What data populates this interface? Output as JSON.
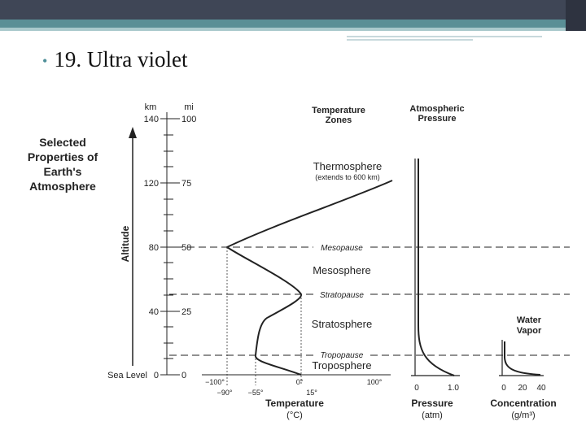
{
  "slide": {
    "title": "19. Ultra violet",
    "accent_color": "#4f8f99"
  },
  "diagram": {
    "selected_title": [
      "Selected",
      "Properties of",
      "Earth's",
      "Atmosphere"
    ],
    "altitude_label": "Altitude",
    "km_header": "km",
    "mi_header": "mi",
    "ticks": {
      "km": [
        "140",
        "120",
        "80",
        "40"
      ],
      "mi": [
        "100",
        "75",
        "50",
        "25",
        "0"
      ],
      "sea_level": "Sea Level",
      "sea_km": "0"
    },
    "temperature_zones_header": [
      "Temperature",
      "Zones"
    ],
    "pressure_header": [
      "Atmospheric",
      "Pressure"
    ],
    "zones": {
      "thermosphere": "Thermosphere",
      "thermosphere_note": "(extends to 600 km)",
      "mesosphere": "Mesosphere",
      "stratosphere": "Stratosphere",
      "troposphere": "Troposphere"
    },
    "boundaries": {
      "mesopause": "Mesopause",
      "stratopause": "Stratopause",
      "tropopause": "Tropopause"
    },
    "temp_axis": {
      "top_ticks": [
        "−100°",
        "0°",
        "100°"
      ],
      "bottom_ticks": [
        "−90°",
        "−55°",
        "15°"
      ],
      "title": "Temperature",
      "unit": "(°C)"
    },
    "pressure_axis": {
      "ticks": [
        "0",
        "1.0"
      ],
      "title": "Pressure",
      "unit": "(atm)"
    },
    "water_vapor": {
      "title": [
        "Water",
        "Vapor"
      ],
      "ticks": [
        "0",
        "20",
        "40"
      ],
      "axis_title": "Concentration",
      "unit": "(g/m³)"
    }
  }
}
